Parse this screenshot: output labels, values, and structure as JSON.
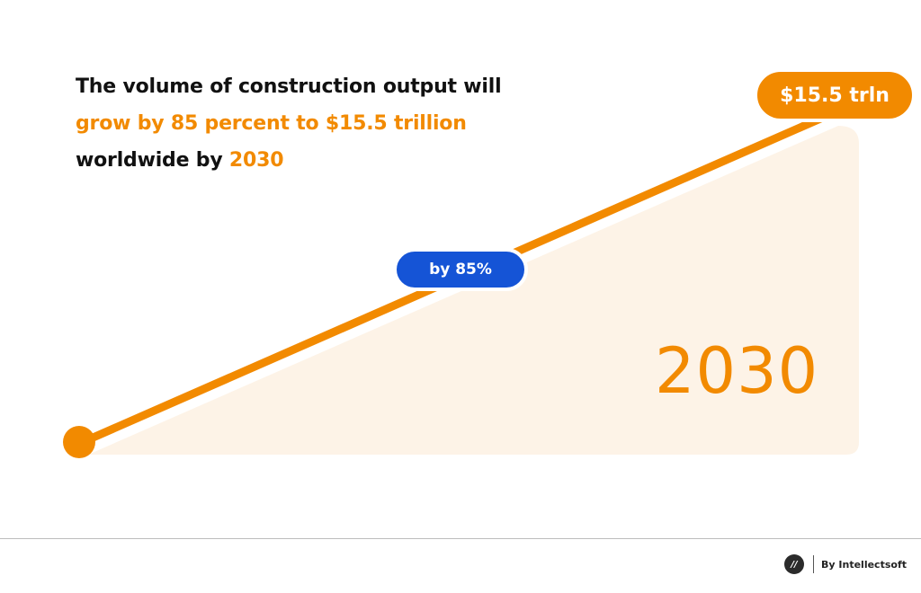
{
  "headline": {
    "line1": "The volume of construction output will",
    "line2": "grow by 85 percent to $15.5 trillion",
    "line3_prefix": "worldwide by ",
    "line3_year": "2030"
  },
  "badges": {
    "value": "$15.5 trln",
    "growth": "by 85%"
  },
  "big_year": "2030",
  "footer": {
    "brand_logo_text": "//",
    "brand_text": "By Intellectsoft"
  },
  "colors": {
    "accent": "#f28a00",
    "growth_badge": "#1554d6",
    "area_fill": "#fdf3e7",
    "text": "#111111"
  }
}
